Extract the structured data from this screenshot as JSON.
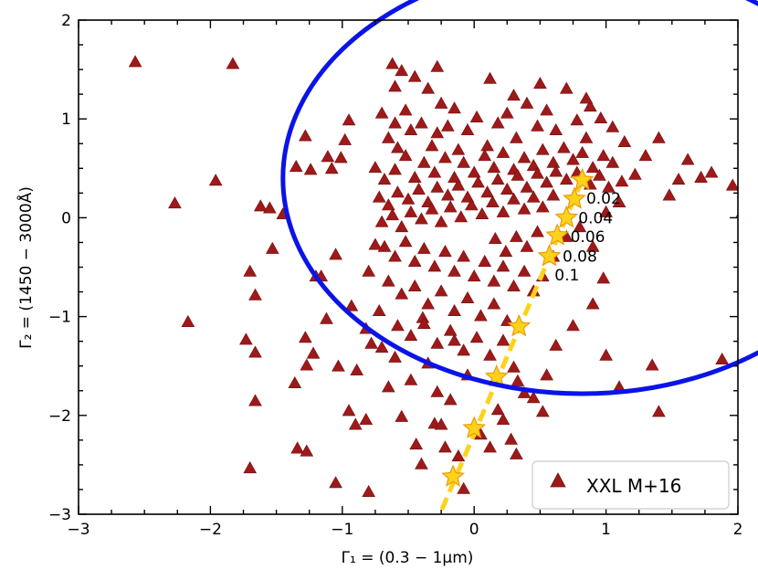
{
  "chart_data": {
    "type": "scatter",
    "xlabel": "Γ₁ = (0.3 − 1μm)",
    "ylabel": "Γ₂ = (1450 − 3000Å)",
    "xlim": [
      -3,
      2
    ],
    "ylim": [
      -3,
      2
    ],
    "x_ticks": [
      -3,
      -2,
      -1,
      0,
      1,
      2
    ],
    "y_ticks": [
      -3,
      -2,
      -1,
      0,
      1,
      2
    ],
    "x_tick_labels": [
      "−3",
      "−2",
      "−1",
      "0",
      "1",
      "2"
    ],
    "y_tick_labels": [
      "−3",
      "−2",
      "−1",
      "0",
      "1",
      "2"
    ],
    "legend": {
      "position": "lower-right",
      "entries": [
        "XXL M+16"
      ]
    },
    "colors": {
      "scatter": "#9e1a1a",
      "ellipse": "#0a14e6",
      "track": "#ffd21a",
      "star_edge": "#e89a10"
    },
    "series": [
      {
        "name": "XXL M+16",
        "marker": "triangle",
        "points": [
          [
            -2.57,
            1.57
          ],
          [
            -1.83,
            1.55
          ],
          [
            -1.96,
            0.37
          ],
          [
            -2.27,
            0.14
          ],
          [
            -2.17,
            -1.06
          ],
          [
            -1.7,
            -0.55
          ],
          [
            -1.66,
            -0.79
          ],
          [
            -1.62,
            0.11
          ],
          [
            -1.55,
            0.09
          ],
          [
            -1.53,
            -0.32
          ],
          [
            -1.45,
            0.03
          ],
          [
            -1.35,
            0.51
          ],
          [
            -1.28,
            0.82
          ],
          [
            -1.24,
            0.48
          ],
          [
            -1.2,
            -0.6
          ],
          [
            -1.11,
            0.61
          ],
          [
            -1.08,
            0.49
          ],
          [
            -1.01,
            0.6
          ],
          [
            -0.98,
            0.78
          ],
          [
            -0.95,
            0.98
          ],
          [
            -1.66,
            -1.37
          ],
          [
            -1.73,
            -1.24
          ],
          [
            -1.66,
            -1.86
          ],
          [
            -1.36,
            -1.68
          ],
          [
            -1.28,
            -1.22
          ],
          [
            -1.27,
            -1.5
          ],
          [
            -1.22,
            -1.38
          ],
          [
            -1.16,
            -0.6
          ],
          [
            -1.12,
            -1.03
          ],
          [
            -1.05,
            -0.38
          ],
          [
            -1.03,
            -1.51
          ],
          [
            -0.93,
            -0.9
          ],
          [
            -0.89,
            -1.55
          ],
          [
            -0.82,
            -1.13
          ],
          [
            -0.8,
            -0.55
          ],
          [
            -0.78,
            -1.28
          ],
          [
            -0.75,
            -0.28
          ],
          [
            -0.72,
            -0.95
          ],
          [
            -0.7,
            -1.32
          ],
          [
            -1.7,
            -2.54
          ],
          [
            -1.34,
            -2.34
          ],
          [
            -1.27,
            -2.37
          ],
          [
            -1.05,
            -2.69
          ],
          [
            -0.8,
            -2.78
          ],
          [
            -0.95,
            -1.96
          ],
          [
            -0.9,
            -2.1
          ],
          [
            -0.82,
            -2.05
          ],
          [
            -0.65,
            -1.72
          ],
          [
            -0.6,
            -1.42
          ],
          [
            -0.55,
            -2.02
          ],
          [
            -0.48,
            -1.65
          ],
          [
            -0.44,
            -2.3
          ],
          [
            -0.4,
            -2.5
          ],
          [
            -0.39,
            -1.02
          ],
          [
            -0.35,
            -1.48
          ],
          [
            -0.3,
            -2.09
          ],
          [
            -0.28,
            -1.77
          ],
          [
            -0.25,
            -2.1
          ],
          [
            -0.22,
            -2.33
          ],
          [
            -0.18,
            -1.85
          ],
          [
            -0.15,
            -1.25
          ],
          [
            -0.12,
            -2.42
          ],
          [
            -0.08,
            -2.75
          ],
          [
            -0.05,
            -1.6
          ],
          [
            0.05,
            -2.2
          ],
          [
            0.12,
            -2.33
          ],
          [
            0.18,
            -1.95
          ],
          [
            0.22,
            -2.05
          ],
          [
            0.28,
            -2.25
          ],
          [
            0.32,
            -2.4
          ],
          [
            0.33,
            -1.66
          ],
          [
            0.3,
            -1.52
          ],
          [
            0.38,
            -1.78
          ],
          [
            0.45,
            -1.83
          ],
          [
            0.52,
            -1.97
          ],
          [
            0.55,
            -1.6
          ],
          [
            0.62,
            -1.3
          ],
          [
            0.75,
            -1.1
          ],
          [
            0.9,
            -0.88
          ],
          [
            0.98,
            -0.62
          ],
          [
            1.0,
            -1.4
          ],
          [
            1.1,
            -1.72
          ],
          [
            1.35,
            -1.5
          ],
          [
            1.4,
            -1.97
          ],
          [
            1.88,
            -1.44
          ],
          [
            1.96,
            0.32
          ],
          [
            2.03,
            0.04
          ],
          [
            1.8,
            0.45
          ],
          [
            1.72,
            0.4
          ],
          [
            1.62,
            0.58
          ],
          [
            1.55,
            0.38
          ],
          [
            1.48,
            0.22
          ],
          [
            1.4,
            0.8
          ],
          [
            1.3,
            0.62
          ],
          [
            1.22,
            0.43
          ],
          [
            1.14,
            0.76
          ],
          [
            1.05,
            0.91
          ],
          [
            0.96,
            1.0
          ],
          [
            0.88,
            1.12
          ],
          [
            0.85,
            0.8
          ],
          [
            -0.62,
            1.55
          ],
          [
            -0.55,
            1.48
          ],
          [
            -0.45,
            1.42
          ],
          [
            -0.35,
            1.3
          ],
          [
            -0.28,
            1.52
          ],
          [
            -0.25,
            1.15
          ],
          [
            -0.15,
            1.1
          ],
          [
            -0.6,
            1.32
          ],
          [
            -0.7,
            1.05
          ],
          [
            -0.6,
            0.95
          ],
          [
            -0.52,
            1.08
          ],
          [
            -0.65,
            0.8
          ],
          [
            -0.58,
            0.7
          ],
          [
            -0.48,
            0.88
          ],
          [
            -0.4,
            0.95
          ],
          [
            -0.32,
            0.72
          ],
          [
            -0.28,
            0.85
          ],
          [
            -0.2,
            0.92
          ],
          [
            -0.12,
            0.68
          ],
          [
            -0.05,
            0.88
          ],
          [
            0.02,
            1.01
          ],
          [
            0.1,
            0.72
          ],
          [
            0.18,
            0.95
          ],
          [
            0.25,
            1.05
          ],
          [
            0.32,
            0.8
          ],
          [
            0.4,
            1.15
          ],
          [
            0.48,
            0.92
          ],
          [
            0.55,
            1.08
          ],
          [
            0.62,
            0.88
          ],
          [
            0.7,
            1.3
          ],
          [
            0.78,
            0.98
          ],
          [
            0.85,
            1.2
          ],
          [
            0.5,
            1.35
          ],
          [
            0.3,
            1.23
          ],
          [
            0.12,
            1.4
          ],
          [
            -0.75,
            0.5
          ],
          [
            -0.68,
            0.38
          ],
          [
            -0.6,
            0.48
          ],
          [
            -0.52,
            0.62
          ],
          [
            -0.45,
            0.4
          ],
          [
            -0.38,
            0.55
          ],
          [
            -0.3,
            0.45
          ],
          [
            -0.22,
            0.6
          ],
          [
            -0.15,
            0.4
          ],
          [
            -0.08,
            0.55
          ],
          [
            0.0,
            0.45
          ],
          [
            0.08,
            0.62
          ],
          [
            0.15,
            0.5
          ],
          [
            0.22,
            0.65
          ],
          [
            0.3,
            0.48
          ],
          [
            0.38,
            0.6
          ],
          [
            0.45,
            0.52
          ],
          [
            0.52,
            0.68
          ],
          [
            0.6,
            0.55
          ],
          [
            0.68,
            0.7
          ],
          [
            0.75,
            0.58
          ],
          [
            0.82,
            0.65
          ],
          [
            0.9,
            0.5
          ],
          [
            0.98,
            0.62
          ],
          [
            1.05,
            0.55
          ],
          [
            -0.72,
            0.2
          ],
          [
            -0.65,
            0.12
          ],
          [
            -0.58,
            0.25
          ],
          [
            -0.5,
            0.18
          ],
          [
            -0.42,
            0.28
          ],
          [
            -0.35,
            0.15
          ],
          [
            -0.28,
            0.3
          ],
          [
            -0.2,
            0.22
          ],
          [
            -0.12,
            0.32
          ],
          [
            -0.05,
            0.2
          ],
          [
            0.03,
            0.35
          ],
          [
            0.1,
            0.25
          ],
          [
            0.18,
            0.38
          ],
          [
            0.25,
            0.28
          ],
          [
            0.33,
            0.42
          ],
          [
            0.4,
            0.3
          ],
          [
            0.48,
            0.44
          ],
          [
            0.55,
            0.35
          ],
          [
            0.62,
            0.46
          ],
          [
            0.7,
            0.38
          ],
          [
            0.78,
            0.45
          ],
          [
            0.88,
            0.33
          ],
          [
            0.95,
            0.42
          ],
          [
            1.02,
            0.3
          ],
          [
            1.12,
            0.36
          ],
          [
            -0.7,
            -0.05
          ],
          [
            -0.62,
            0.02
          ],
          [
            -0.55,
            -0.1
          ],
          [
            -0.48,
            0.05
          ],
          [
            -0.4,
            -0.02
          ],
          [
            -0.32,
            0.08
          ],
          [
            -0.25,
            -0.05
          ],
          [
            -0.18,
            0.1
          ],
          [
            -0.1,
            0.0
          ],
          [
            -0.02,
            0.12
          ],
          [
            0.06,
            0.03
          ],
          [
            0.14,
            0.15
          ],
          [
            0.22,
            0.05
          ],
          [
            0.3,
            0.18
          ],
          [
            0.38,
            0.08
          ],
          [
            0.45,
            0.2
          ],
          [
            0.52,
            0.1
          ],
          [
            0.6,
            0.22
          ],
          [
            -0.68,
            -0.3
          ],
          [
            -0.6,
            -0.4
          ],
          [
            -0.52,
            -0.25
          ],
          [
            -0.45,
            -0.45
          ],
          [
            -0.38,
            -0.32
          ],
          [
            -0.3,
            -0.5
          ],
          [
            -0.22,
            -0.35
          ],
          [
            -0.15,
            -0.55
          ],
          [
            -0.08,
            -0.4
          ],
          [
            0.0,
            -0.6
          ],
          [
            0.08,
            -0.45
          ],
          [
            0.15,
            -0.65
          ],
          [
            0.22,
            -0.5
          ],
          [
            0.3,
            -0.7
          ],
          [
            0.38,
            -0.55
          ],
          [
            0.45,
            -0.75
          ],
          [
            0.52,
            -0.6
          ],
          [
            -0.65,
            -0.65
          ],
          [
            -0.55,
            -0.78
          ],
          [
            -0.45,
            -0.7
          ],
          [
            -0.35,
            -0.88
          ],
          [
            -0.25,
            -0.75
          ],
          [
            -0.15,
            -0.95
          ],
          [
            -0.05,
            -0.82
          ],
          [
            0.05,
            -1.0
          ],
          [
            0.15,
            -0.88
          ],
          [
            0.25,
            -1.05
          ],
          [
            -0.58,
            -1.1
          ],
          [
            -0.48,
            -1.2
          ],
          [
            -0.38,
            -1.08
          ],
          [
            -0.28,
            -1.28
          ],
          [
            -0.18,
            -1.15
          ],
          [
            -0.08,
            -1.35
          ],
          [
            0.02,
            -1.22
          ],
          [
            0.12,
            -1.4
          ],
          [
            0.22,
            -1.25
          ],
          [
            0.6,
            -0.4
          ],
          [
            0.7,
            -0.2
          ],
          [
            0.8,
            -0.1
          ],
          [
            0.9,
            -0.3
          ],
          [
            1.0,
            0.05
          ],
          [
            1.1,
            0.15
          ],
          [
            0.48,
            -0.15
          ],
          [
            0.4,
            -0.3
          ],
          [
            0.32,
            -0.2
          ],
          [
            0.24,
            -0.35
          ],
          [
            0.16,
            -0.22
          ]
        ]
      },
      {
        "name": "track",
        "marker": "star",
        "line": "dashed",
        "labels": [
          "0.02",
          "0.04",
          "0.06",
          "0.08",
          "0.1"
        ],
        "points": [
          [
            0.82,
            0.38
          ],
          [
            0.76,
            0.19
          ],
          [
            0.7,
            0.0
          ],
          [
            0.63,
            -0.18
          ],
          [
            0.57,
            -0.39
          ],
          [
            0.34,
            -1.1
          ],
          [
            0.17,
            -1.61
          ],
          [
            0.0,
            -2.13
          ],
          [
            -0.16,
            -2.62
          ]
        ],
        "line_extent": [
          [
            0.82,
            0.38
          ],
          [
            -0.26,
            -3.0
          ]
        ]
      }
    ],
    "ellipse": {
      "cx": 0.82,
      "cy": 0.4,
      "rx": 2.27,
      "ry": 2.18
    },
    "annotations": [
      {
        "text": "0.02",
        "x": 0.85,
        "y": 0.2
      },
      {
        "text": "0.04",
        "x": 0.79,
        "y": 0.0
      },
      {
        "text": "0.06",
        "x": 0.73,
        "y": -0.19
      },
      {
        "text": "0.08",
        "x": 0.67,
        "y": -0.39
      },
      {
        "text": "0.1",
        "x": 0.61,
        "y": -0.58
      }
    ]
  }
}
